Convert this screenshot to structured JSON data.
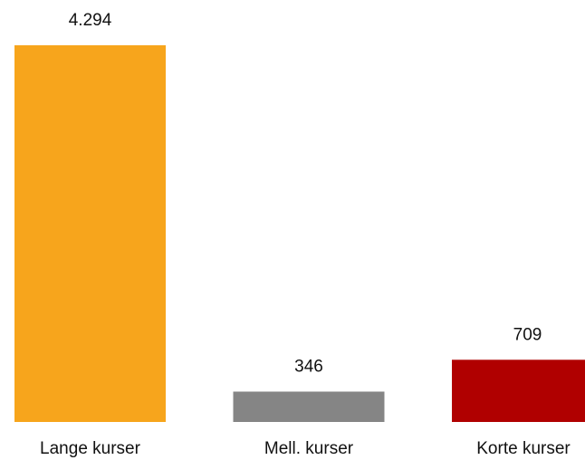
{
  "chart_data": {
    "type": "bar",
    "categories": [
      "Lange kurser",
      "Mell. kurser",
      "Korte kurser"
    ],
    "values": [
      4294,
      346,
      709
    ],
    "value_labels": [
      "4.294",
      "346",
      "709"
    ],
    "colors": [
      "#f7a51c",
      "#858585",
      "#b00000"
    ]
  }
}
